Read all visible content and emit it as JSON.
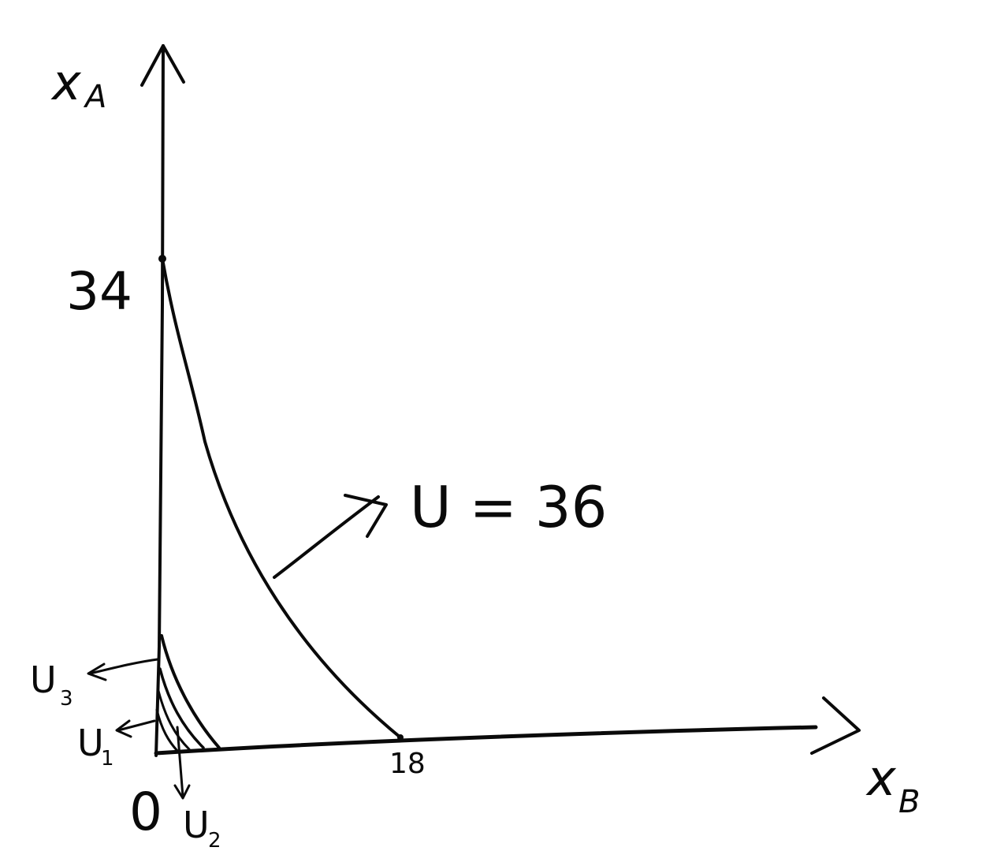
{
  "diagram": {
    "y_axis": {
      "label": "x",
      "subscript": "A"
    },
    "x_axis": {
      "label": "x",
      "subscript": "B"
    },
    "origin_label": "0",
    "y_tick_label": "34",
    "x_tick_label": "18",
    "main_curve_label": "U = 36",
    "small_curves": [
      {
        "label": "U",
        "subscript": "3"
      },
      {
        "label": "U",
        "subscript": "1"
      },
      {
        "label": "U",
        "subscript": "2"
      }
    ]
  }
}
